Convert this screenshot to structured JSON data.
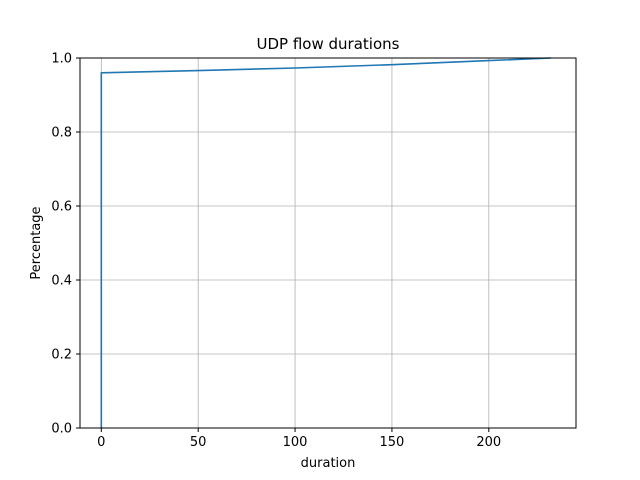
{
  "chart_data": {
    "type": "line",
    "title": "UDP flow durations",
    "xlabel": "duration",
    "ylabel": "Percentage",
    "xlim": [
      -11,
      245
    ],
    "ylim": [
      0,
      1
    ],
    "xticks": [
      0,
      50,
      100,
      150,
      200
    ],
    "yticks": [
      0.0,
      0.2,
      0.4,
      0.6,
      0.8,
      1.0
    ],
    "grid": true,
    "series": [
      {
        "color": "#1f77b4",
        "x": [
          0,
          0,
          0,
          0,
          50,
          100,
          150,
          200,
          232
        ],
        "y": [
          0.0,
          0.5,
          0.94,
          0.96,
          0.966,
          0.973,
          0.982,
          0.993,
          1.0
        ]
      }
    ]
  }
}
